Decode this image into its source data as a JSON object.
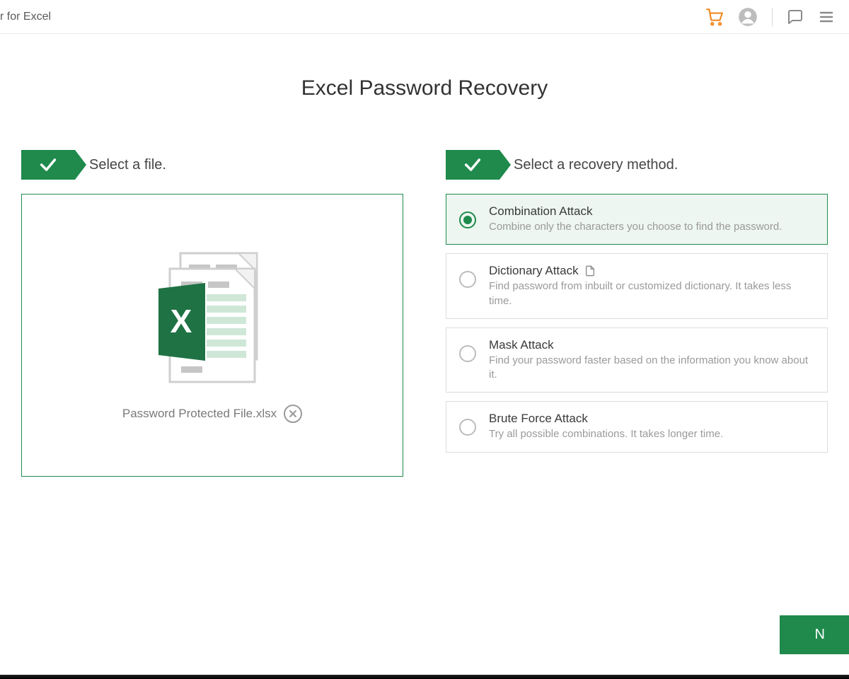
{
  "header": {
    "app_title_fragment": "r for Excel"
  },
  "page": {
    "title": "Excel Password Recovery"
  },
  "step1": {
    "label": "Select a file.",
    "file_name": "Password Protected File.xlsx"
  },
  "step2": {
    "label": "Select a recovery method."
  },
  "methods": [
    {
      "title": "Combination Attack",
      "desc": "Combine only the characters you choose to find the password.",
      "selected": true,
      "has_icon": false
    },
    {
      "title": "Dictionary Attack",
      "desc": "Find password from inbuilt or customized dictionary. It takes less time.",
      "selected": false,
      "has_icon": true
    },
    {
      "title": "Mask Attack",
      "desc": "Find your password faster based on the information you know about it.",
      "selected": false,
      "has_icon": false
    },
    {
      "title": "Brute Force Attack",
      "desc": "Try all possible combinations. It takes longer time.",
      "selected": false,
      "has_icon": false
    }
  ],
  "actions": {
    "next_label": "N"
  },
  "colors": {
    "primary": "#1f8a4c",
    "selected_bg": "#edf6f0",
    "border": "#dcdcdc",
    "text": "#333333",
    "muted": "#9a9a9a",
    "cart": "#f08a24"
  }
}
